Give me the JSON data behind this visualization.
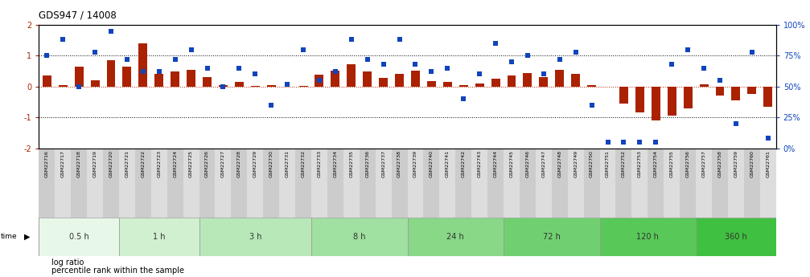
{
  "title": "GDS947 / 14008",
  "samples": [
    "GSM22716",
    "GSM22717",
    "GSM22718",
    "GSM22719",
    "GSM22720",
    "GSM22721",
    "GSM22722",
    "GSM22723",
    "GSM22724",
    "GSM22725",
    "GSM22726",
    "GSM22727",
    "GSM22728",
    "GSM22729",
    "GSM22730",
    "GSM22731",
    "GSM22732",
    "GSM22733",
    "GSM22734",
    "GSM22735",
    "GSM22736",
    "GSM22737",
    "GSM22738",
    "GSM22739",
    "GSM22740",
    "GSM22741",
    "GSM22742",
    "GSM22743",
    "GSM22744",
    "GSM22745",
    "GSM22746",
    "GSM22747",
    "GSM22748",
    "GSM22749",
    "GSM22750",
    "GSM22751",
    "GSM22752",
    "GSM22753",
    "GSM22754",
    "GSM22755",
    "GSM22756",
    "GSM22757",
    "GSM22758",
    "GSM22759",
    "GSM22760",
    "GSM22761"
  ],
  "log_ratio": [
    0.35,
    0.05,
    0.65,
    0.2,
    0.85,
    0.65,
    1.4,
    0.42,
    0.48,
    0.55,
    0.3,
    0.06,
    0.15,
    0.03,
    0.06,
    0.0,
    0.03,
    0.38,
    0.52,
    0.72,
    0.5,
    0.27,
    0.4,
    0.52,
    0.18,
    0.15,
    0.06,
    0.1,
    0.25,
    0.35,
    0.43,
    0.3,
    0.53,
    0.42,
    0.05,
    0.0,
    -0.55,
    -0.85,
    -1.1,
    -0.95,
    -0.7,
    0.08,
    -0.3,
    -0.45,
    -0.25,
    -0.65
  ],
  "percentile": [
    75,
    88,
    50,
    78,
    95,
    72,
    62,
    62,
    72,
    80,
    65,
    50,
    65,
    60,
    35,
    52,
    80,
    55,
    62,
    88,
    72,
    68,
    88,
    68,
    62,
    65,
    40,
    60,
    85,
    70,
    75,
    60,
    72,
    78,
    35,
    5,
    5,
    5,
    5,
    68,
    80,
    65,
    55,
    20,
    78,
    8
  ],
  "time_groups": [
    {
      "label": "0.5 h",
      "start": 0,
      "end": 5
    },
    {
      "label": "1 h",
      "start": 5,
      "end": 10
    },
    {
      "label": "3 h",
      "start": 10,
      "end": 17
    },
    {
      "label": "8 h",
      "start": 17,
      "end": 23
    },
    {
      "label": "24 h",
      "start": 23,
      "end": 29
    },
    {
      "label": "72 h",
      "start": 29,
      "end": 35
    },
    {
      "label": "120 h",
      "start": 35,
      "end": 41
    },
    {
      "label": "360 h",
      "start": 41,
      "end": 46
    }
  ],
  "group_colors": [
    "#e8f8e8",
    "#d0f0d0",
    "#b8e8b8",
    "#a0e0a0",
    "#88d888",
    "#70d070",
    "#58c858",
    "#40c040"
  ],
  "bar_color": "#aa2200",
  "scatter_color": "#1144bb",
  "ylim_left": [
    -2,
    2
  ],
  "ylim_right": [
    0,
    100
  ],
  "bg_color": "#ffffff",
  "tick_label_bg": "#cccccc",
  "tick_label_bg2": "#dddddd"
}
